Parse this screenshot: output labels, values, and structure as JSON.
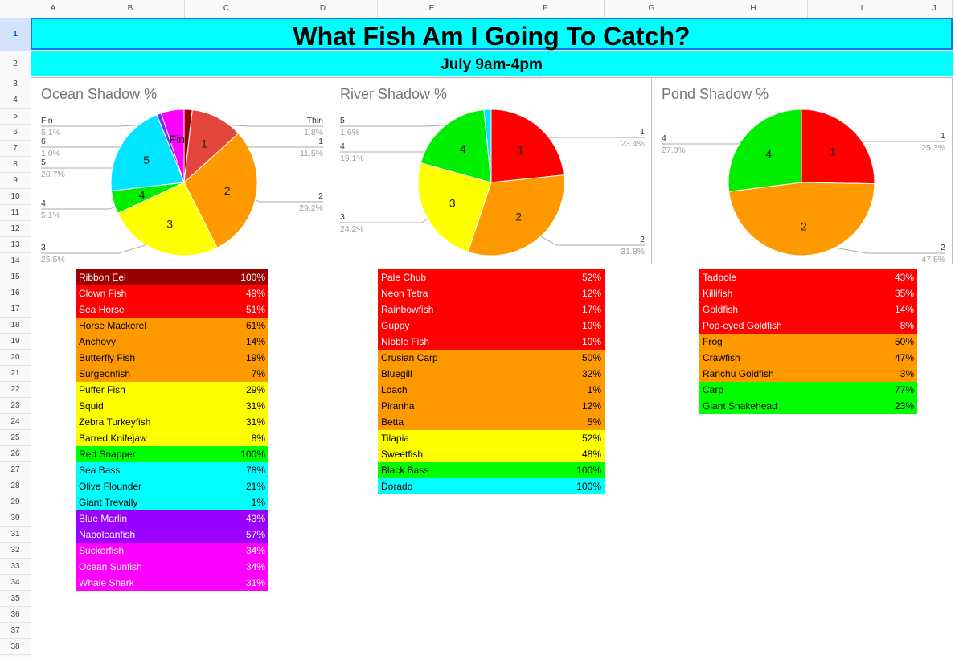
{
  "columns": [
    "A",
    "B",
    "C",
    "D",
    "E",
    "F",
    "G",
    "H",
    "I",
    "J"
  ],
  "rows": [
    "1",
    "2",
    "3",
    "4",
    "5",
    "6",
    "7",
    "8",
    "9",
    "10",
    "11",
    "12",
    "13",
    "14",
    "15",
    "16",
    "17",
    "18",
    "19",
    "20",
    "21",
    "22",
    "23",
    "24",
    "25",
    "26",
    "27",
    "28",
    "29",
    "30",
    "31",
    "32",
    "33",
    "34",
    "35",
    "36",
    "37",
    "38"
  ],
  "sheet": {
    "title": "What Fish Am I Going To Catch?",
    "subtitle": "July 9am-4pm"
  },
  "colors": {
    "title_bg": "#00ffff",
    "dark_red": "#990000",
    "red": "#ff0000",
    "orange": "#ff9900",
    "yellow": "#ffff00",
    "green": "#00ff00",
    "cyan": "#00ffff",
    "purple": "#9900ff",
    "magenta": "#ff00ff"
  },
  "chart_data": [
    {
      "type": "pie",
      "title": "Ocean Shadow %",
      "slices": [
        {
          "label": "Thin",
          "value": 1.8,
          "pct": "1.8%",
          "color": "#990000",
          "inner": ""
        },
        {
          "label": "1",
          "value": 11.5,
          "pct": "11.5%",
          "color": "#e5463b",
          "inner": "1"
        },
        {
          "label": "2",
          "value": 29.2,
          "pct": "29.2%",
          "color": "#ff9900",
          "inner": "2"
        },
        {
          "label": "3",
          "value": 25.5,
          "pct": "25.5%",
          "color": "#ffff00",
          "inner": "3"
        },
        {
          "label": "4",
          "value": 5.1,
          "pct": "5.1%",
          "color": "#00ee00",
          "inner": "4"
        },
        {
          "label": "5",
          "value": 20.7,
          "pct": "20.7%",
          "color": "#00e5ff",
          "inner": "5"
        },
        {
          "label": "6",
          "value": 1.0,
          "pct": "1.0%",
          "color": "#7b2bff",
          "inner": ""
        },
        {
          "label": "Fin",
          "value": 5.1,
          "pct": "5.1%",
          "color": "#ff00ff",
          "inner": "Fin"
        }
      ]
    },
    {
      "type": "pie",
      "title": "River Shadow %",
      "slices": [
        {
          "label": "1",
          "value": 23.4,
          "pct": "23.4%",
          "color": "#ff0000",
          "inner": "1"
        },
        {
          "label": "2",
          "value": 31.8,
          "pct": "31.8%",
          "color": "#ff9900",
          "inner": "2"
        },
        {
          "label": "3",
          "value": 24.2,
          "pct": "24.2%",
          "color": "#ffff00",
          "inner": "3"
        },
        {
          "label": "4",
          "value": 19.1,
          "pct": "19.1%",
          "color": "#00ee00",
          "inner": "4"
        },
        {
          "label": "5",
          "value": 1.6,
          "pct": "1.6%",
          "color": "#00e5ff",
          "inner": ""
        }
      ]
    },
    {
      "type": "pie",
      "title": "Pond Shadow %",
      "slices": [
        {
          "label": "1",
          "value": 25.3,
          "pct": "25.3%",
          "color": "#ff0000",
          "inner": "1"
        },
        {
          "label": "2",
          "value": 47.8,
          "pct": "47.8%",
          "color": "#ff9900",
          "inner": "2"
        },
        {
          "label": "4",
          "value": 27.0,
          "pct": "27.0%",
          "color": "#00ee00",
          "inner": "4"
        }
      ]
    }
  ],
  "tables": {
    "ocean": [
      {
        "name": "Ribbon Eel",
        "pct": "100%",
        "bg": "#990000",
        "fg": "#ffffff"
      },
      {
        "name": "Clown Fish",
        "pct": "49%",
        "bg": "#ff0000",
        "fg": "#ffffff"
      },
      {
        "name": "Sea Horse",
        "pct": "51%",
        "bg": "#ff0000",
        "fg": "#ffffff"
      },
      {
        "name": "Horse Mackerel",
        "pct": "61%",
        "bg": "#ff9900",
        "fg": "#000000"
      },
      {
        "name": "Anchovy",
        "pct": "14%",
        "bg": "#ff9900",
        "fg": "#000000"
      },
      {
        "name": "Butterfly Fish",
        "pct": "19%",
        "bg": "#ff9900",
        "fg": "#000000"
      },
      {
        "name": "Surgeonfish",
        "pct": "7%",
        "bg": "#ff9900",
        "fg": "#000000"
      },
      {
        "name": "Puffer Fish",
        "pct": "29%",
        "bg": "#ffff00",
        "fg": "#000000"
      },
      {
        "name": "Squid",
        "pct": "31%",
        "bg": "#ffff00",
        "fg": "#000000"
      },
      {
        "name": "Zebra Turkeyfish",
        "pct": "31%",
        "bg": "#ffff00",
        "fg": "#000000"
      },
      {
        "name": "Barred Knifejaw",
        "pct": "8%",
        "bg": "#ffff00",
        "fg": "#000000"
      },
      {
        "name": "Red Snapper",
        "pct": "100%",
        "bg": "#00ff00",
        "fg": "#000000"
      },
      {
        "name": "Sea Bass",
        "pct": "78%",
        "bg": "#00ffff",
        "fg": "#000000"
      },
      {
        "name": "Olive Flounder",
        "pct": "21%",
        "bg": "#00ffff",
        "fg": "#000000"
      },
      {
        "name": "Giant Trevally",
        "pct": "1%",
        "bg": "#00ffff",
        "fg": "#000000"
      },
      {
        "name": "Blue Marlin",
        "pct": "43%",
        "bg": "#9900ff",
        "fg": "#ffffff"
      },
      {
        "name": "Napoleanfish",
        "pct": "57%",
        "bg": "#9900ff",
        "fg": "#ffffff"
      },
      {
        "name": "Suckerfish",
        "pct": "34%",
        "bg": "#ff00ff",
        "fg": "#ffffff"
      },
      {
        "name": "Ocean Sunfish",
        "pct": "34%",
        "bg": "#ff00ff",
        "fg": "#ffffff"
      },
      {
        "name": "Whale Shark",
        "pct": "31%",
        "bg": "#ff00ff",
        "fg": "#ffffff"
      }
    ],
    "river": [
      {
        "name": "Pale Chub",
        "pct": "52%",
        "bg": "#ff0000",
        "fg": "#ffffff"
      },
      {
        "name": "Neon Tetra",
        "pct": "12%",
        "bg": "#ff0000",
        "fg": "#ffffff"
      },
      {
        "name": "Rainbowfish",
        "pct": "17%",
        "bg": "#ff0000",
        "fg": "#ffffff"
      },
      {
        "name": "Guppy",
        "pct": "10%",
        "bg": "#ff0000",
        "fg": "#ffffff"
      },
      {
        "name": "Nibble Fish",
        "pct": "10%",
        "bg": "#ff0000",
        "fg": "#ffffff"
      },
      {
        "name": "Crusian Carp",
        "pct": "50%",
        "bg": "#ff9900",
        "fg": "#000000"
      },
      {
        "name": "Bluegill",
        "pct": "32%",
        "bg": "#ff9900",
        "fg": "#000000"
      },
      {
        "name": "Loach",
        "pct": "1%",
        "bg": "#ff9900",
        "fg": "#000000"
      },
      {
        "name": "Piranha",
        "pct": "12%",
        "bg": "#ff9900",
        "fg": "#000000"
      },
      {
        "name": "Betta",
        "pct": "5%",
        "bg": "#ff9900",
        "fg": "#000000"
      },
      {
        "name": "Tilapia",
        "pct": "52%",
        "bg": "#ffff00",
        "fg": "#000000"
      },
      {
        "name": "Sweetfish",
        "pct": "48%",
        "bg": "#ffff00",
        "fg": "#000000"
      },
      {
        "name": "Black Bass",
        "pct": "100%",
        "bg": "#00ff00",
        "fg": "#000000"
      },
      {
        "name": "Dorado",
        "pct": "100%",
        "bg": "#00ffff",
        "fg": "#000000"
      }
    ],
    "pond": [
      {
        "name": "Tadpole",
        "pct": "43%",
        "bg": "#ff0000",
        "fg": "#ffffff"
      },
      {
        "name": "Killifish",
        "pct": "35%",
        "bg": "#ff0000",
        "fg": "#ffffff"
      },
      {
        "name": "Goldfish",
        "pct": "14%",
        "bg": "#ff0000",
        "fg": "#ffffff"
      },
      {
        "name": "Pop-eyed Goldfish",
        "pct": "8%",
        "bg": "#ff0000",
        "fg": "#ffffff"
      },
      {
        "name": "Frog",
        "pct": "50%",
        "bg": "#ff9900",
        "fg": "#000000"
      },
      {
        "name": "Crawfish",
        "pct": "47%",
        "bg": "#ff9900",
        "fg": "#000000"
      },
      {
        "name": "Ranchu Goldfish",
        "pct": "3%",
        "bg": "#ff9900",
        "fg": "#000000"
      },
      {
        "name": "Carp",
        "pct": "77%",
        "bg": "#00ff00",
        "fg": "#000000"
      },
      {
        "name": "Giant Snakehead",
        "pct": "23%",
        "bg": "#00ff00",
        "fg": "#000000"
      }
    ]
  }
}
